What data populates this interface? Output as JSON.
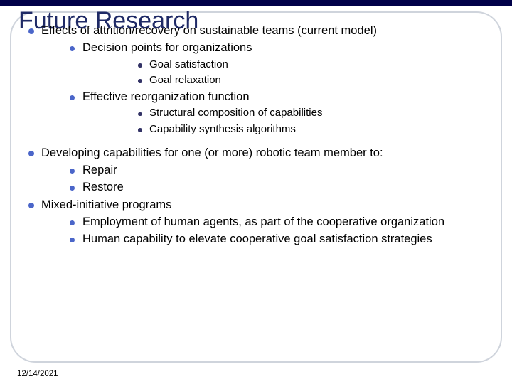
{
  "colors": {
    "top_bar": "#000048",
    "title_color": "#1f2a66",
    "frame_border": "#cfd4dc",
    "bullet_primary": "#4b66c9",
    "bullet_tertiary": "#333366",
    "background": "#ffffff",
    "text": "#000000"
  },
  "typography": {
    "title_fontsize": 34,
    "body_fontsize": 16.5,
    "sub_fontsize": 15,
    "footer_fontsize": 11.5,
    "font_family": "Arial"
  },
  "title": "Future Research",
  "footer_date": "12/14/2021",
  "items": [
    {
      "text": "Effects of attrition/recovery on sustainable teams (current model)",
      "children": [
        {
          "text": "Decision points for organizations",
          "children": [
            {
              "text": "Goal satisfaction"
            },
            {
              "text": "Goal relaxation"
            }
          ]
        },
        {
          "text": "Effective reorganization function",
          "children": [
            {
              "text": "Structural composition of capabilities"
            },
            {
              "text": "Capability synthesis algorithms"
            }
          ]
        }
      ]
    },
    {
      "text": "Developing capabilities for one (or more) robotic team member to:",
      "children": [
        {
          "text": "Repair"
        },
        {
          "text": "Restore"
        }
      ]
    },
    {
      "text": "Mixed-initiative programs",
      "children": [
        {
          "text": "Employment of human agents, as part of the cooperative organization"
        },
        {
          "text": "Human capability to elevate cooperative goal satisfaction strategies"
        }
      ]
    }
  ]
}
